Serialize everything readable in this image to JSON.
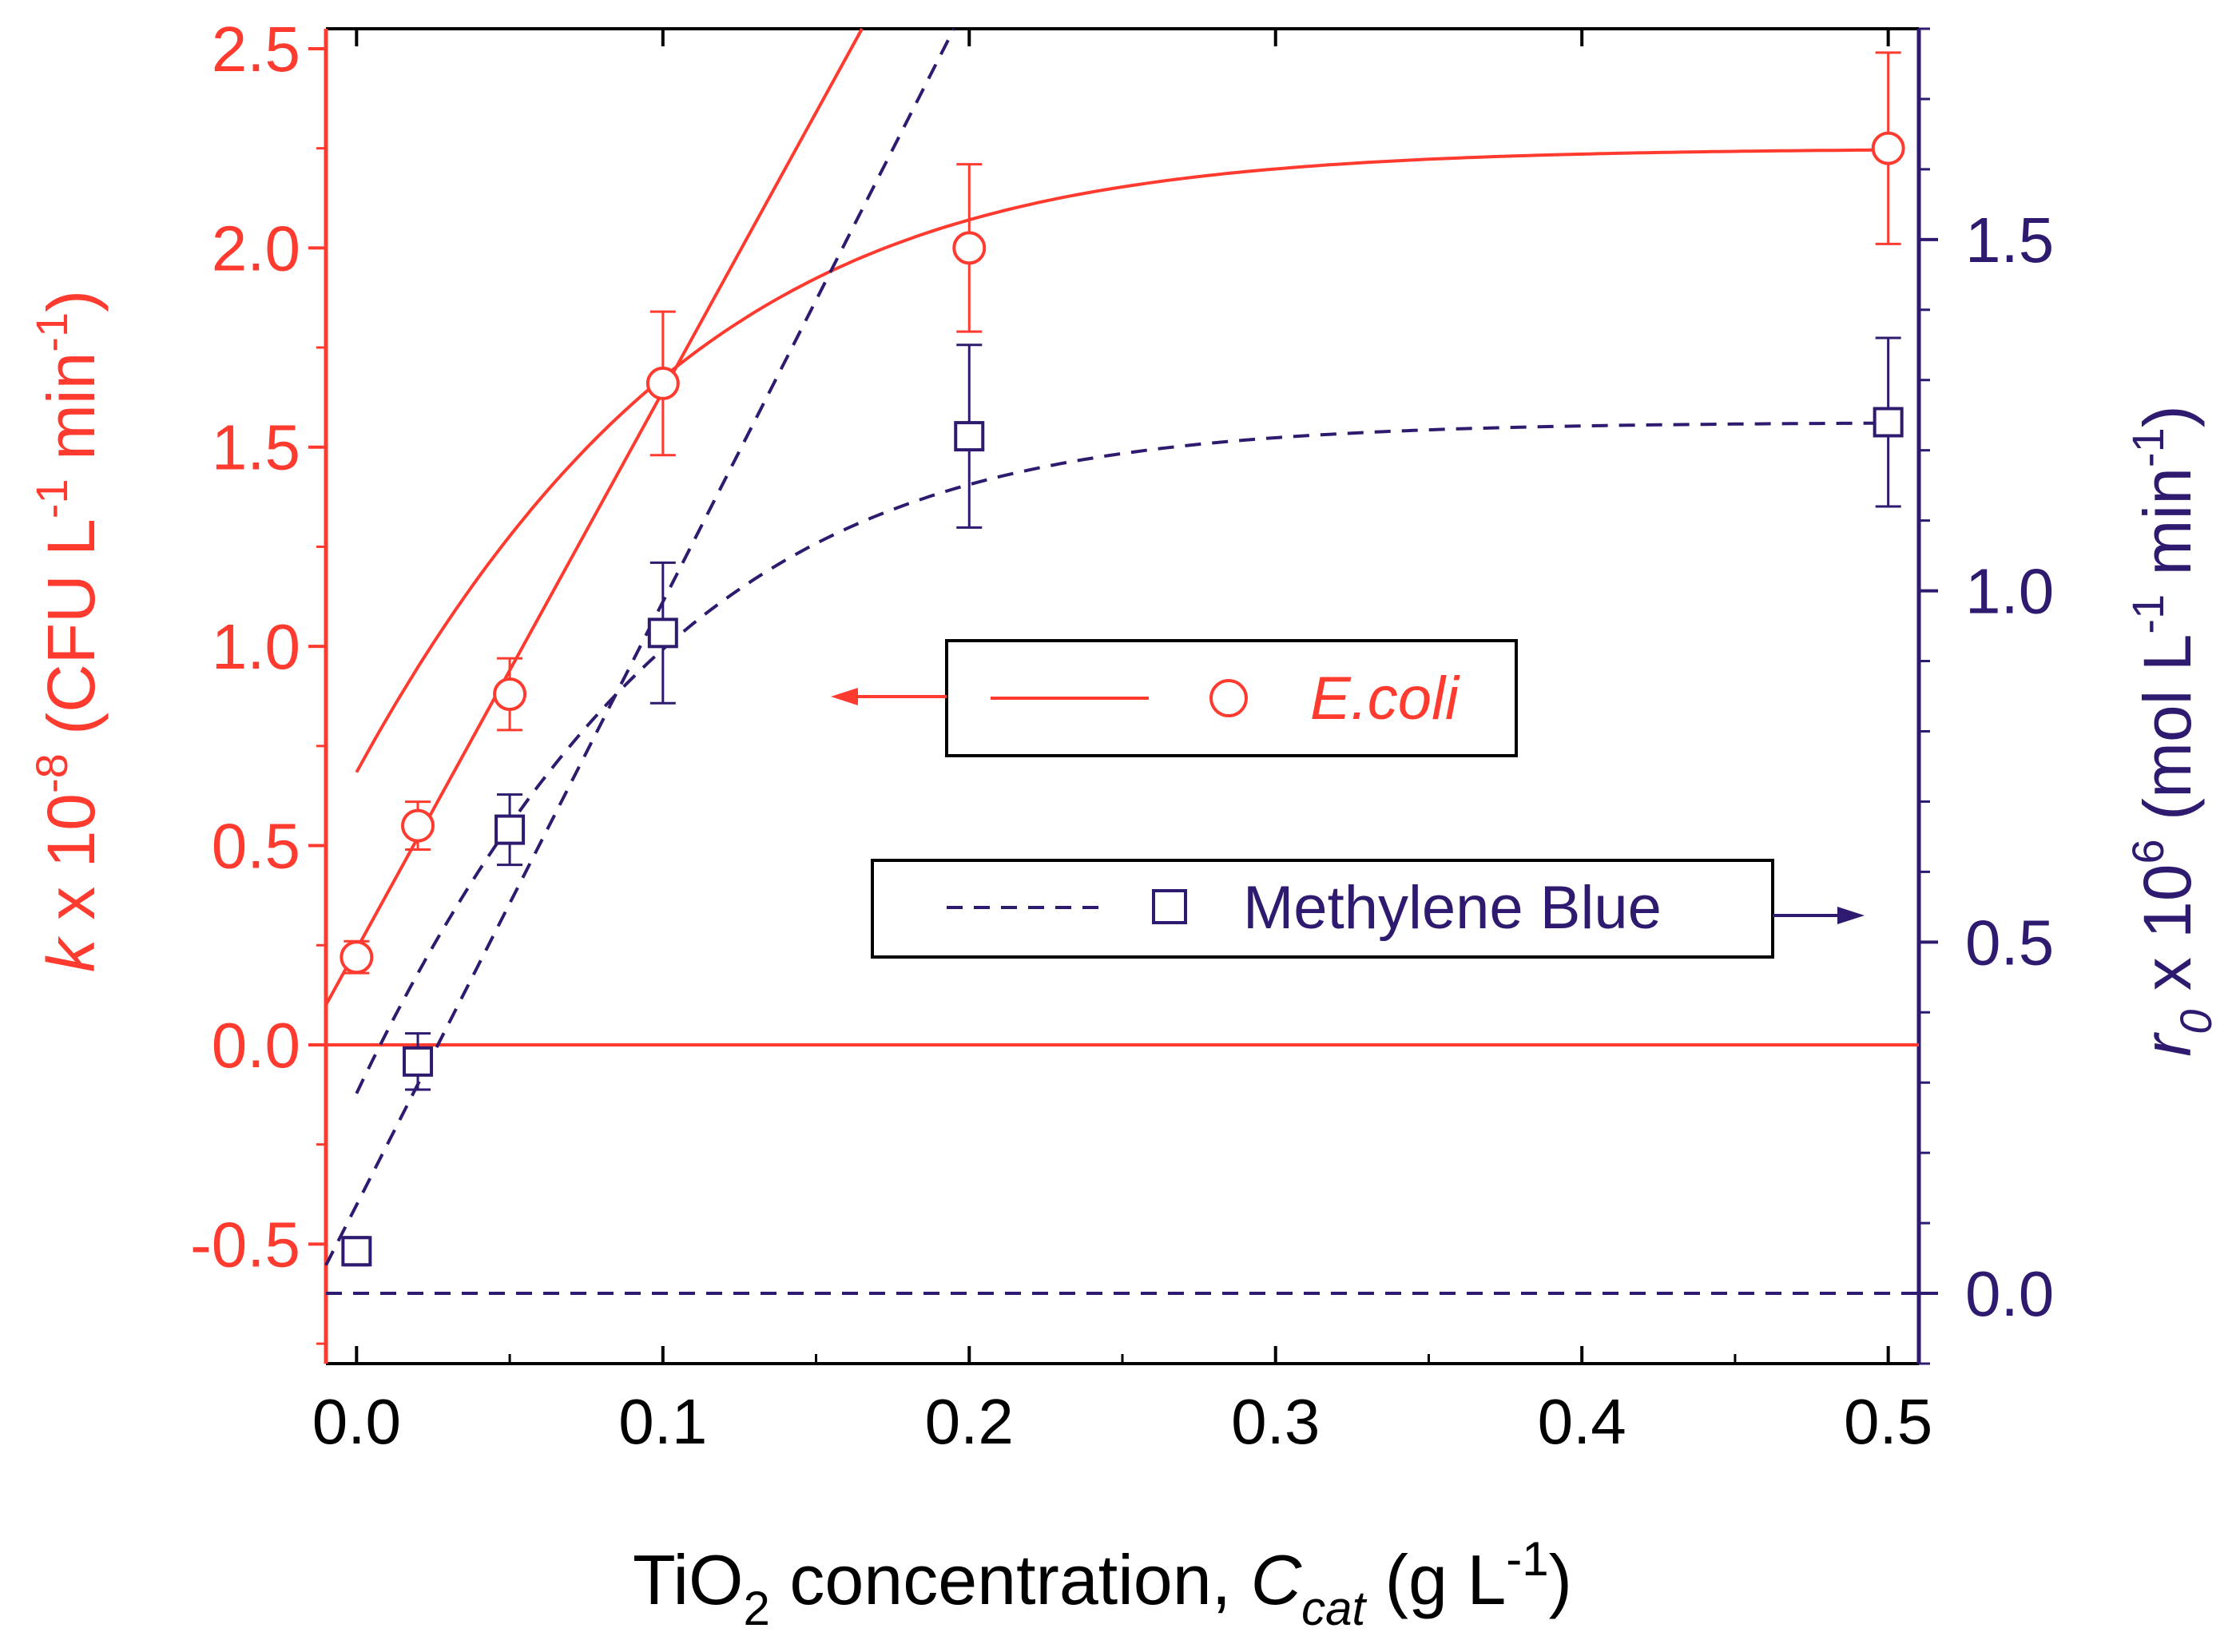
{
  "colors": {
    "left": "#ff3b30",
    "right": "#2e1a6e",
    "axis": "#000000"
  },
  "chart_data": {
    "type": "scatter",
    "x_axis": {
      "label_main": "TiO",
      "label_sub2": "2",
      "label_mid": " concentration, ",
      "label_var": "C",
      "label_varsub": "cat",
      "label_unit": " (g L",
      "label_unit_sup": "-1",
      "label_close": ")",
      "xlim": [
        -0.01,
        0.51
      ],
      "major_ticks": [
        0.0,
        0.1,
        0.2,
        0.3,
        0.4,
        0.5
      ],
      "tick_labels": [
        "0.0",
        "0.1",
        "0.2",
        "0.3",
        "0.4",
        "0.5"
      ],
      "minor_ticks": [
        0.05,
        0.15,
        0.25,
        0.35,
        0.45
      ]
    },
    "y_left": {
      "label_var": "k",
      "label_mult": " x 10",
      "label_exp": "-8",
      "label_unit": " (CFU L",
      "label_unit_sup1": "-1",
      "label_min": " min",
      "label_min_sup": "-1",
      "label_close": ")",
      "ylim": [
        -0.8,
        2.55
      ],
      "major_ticks": [
        -0.5,
        0.0,
        0.5,
        1.0,
        1.5,
        2.0,
        2.5
      ],
      "tick_labels": [
        "-0.5",
        "0.0",
        "0.5",
        "1.0",
        "1.5",
        "2.0",
        "2.5"
      ],
      "minor_ticks": [
        -0.75,
        -0.25,
        0.25,
        0.75,
        1.25,
        1.75,
        2.25
      ]
    },
    "y_right": {
      "label_var": "r",
      "label_varsub": "0",
      "label_mult": " x 10",
      "label_exp": "6",
      "label_unit": " (mol L",
      "label_unit_sup1": "-1",
      "label_min": " min",
      "label_min_sup": "-1",
      "label_close": ")",
      "ylim": [
        -0.1,
        1.8
      ],
      "major_ticks": [
        0.0,
        0.5,
        1.0,
        1.5
      ],
      "tick_labels": [
        "0.0",
        "0.5",
        "1.0",
        "1.5"
      ],
      "minor_ticks": [
        -0.1,
        0.1,
        0.2,
        0.3,
        0.4,
        0.6,
        0.7,
        0.8,
        0.9,
        1.1,
        1.2,
        1.3,
        1.4,
        1.6,
        1.7,
        1.8
      ]
    },
    "series": [
      {
        "name": "E.coli",
        "axis": "left",
        "marker": "circle",
        "line": "solid",
        "x": [
          0.0,
          0.02,
          0.05,
          0.1,
          0.2,
          0.5
        ],
        "y": [
          0.22,
          0.55,
          0.88,
          1.66,
          2.0,
          2.25
        ],
        "err": [
          0.04,
          0.06,
          0.09,
          0.18,
          0.21,
          0.24
        ],
        "fit_plateau": 2.25,
        "fit_rate": 0.078,
        "fit_shift": 0.03,
        "tangent": {
          "x0": -0.01,
          "y0": 0.1,
          "x1": 0.165,
          "y1": 2.55
        }
      },
      {
        "name": "Methylene Blue",
        "axis": "right",
        "marker": "square",
        "line": "dashed",
        "x": [
          0.0,
          0.02,
          0.05,
          0.1,
          0.2,
          0.5
        ],
        "y": [
          0.06,
          0.33,
          0.66,
          0.94,
          1.22,
          1.24
        ],
        "err": [
          0.02,
          0.04,
          0.05,
          0.1,
          0.13,
          0.12
        ],
        "fit_plateau": 1.24,
        "fit_rate": 0.07,
        "fit_shift": 0.045,
        "tangent": {
          "x0": -0.01,
          "y0": 0.04,
          "x1": 0.195,
          "y1": 1.8
        }
      }
    ],
    "reference_lines": [
      {
        "axis": "left",
        "value": 0.0,
        "style": "solid"
      },
      {
        "axis": "right",
        "value": 0.0,
        "style": "dashed"
      }
    ],
    "legend": [
      {
        "series": "E.coli",
        "label": "E.coli",
        "points_to": "left-axis",
        "position": "center-right"
      },
      {
        "series": "Methylene Blue",
        "label": "Methylene Blue",
        "points_to": "right-axis",
        "position": "center-right"
      }
    ]
  }
}
